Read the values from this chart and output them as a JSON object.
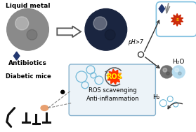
{
  "bg_color": "#ffffff",
  "liquid_metal_label": "Liquid metal",
  "antibiotics_label": "Antibiotics",
  "diabetic_mice_label": "Diabetic mice",
  "ros_label": "ROS",
  "ros_scavenging_label": "ROS scavenging",
  "anti_inflammation_label": "Anti-inflammation",
  "ph_label": "pH>7",
  "h2o_label": "H₂O",
  "h2_label": "H₂",
  "gray_sphere_color": "#8a8a8a",
  "dark_sphere_color": "#1a2540",
  "small_gray_sphere_color": "#707070",
  "light_blue_sphere_color": "#b8ddf0",
  "diamond_color": "#233870",
  "box_edge_color": "#7baac8",
  "box_face_color": "#eaf2f8",
  "ros_text_color": "#ffee00",
  "ros_bg_color": "#ff3300",
  "bubble_edge_color": "#70b8d8",
  "arrow_color": "#333333",
  "bacteria_color": "#cc2200",
  "capsule_color": "#80c0e0",
  "gray_needle_color": "#888888",
  "mouse_color": "#ffffff",
  "mouse_edge_color": "#111111",
  "wound_color": "#e8a070",
  "line_color": "#888888"
}
